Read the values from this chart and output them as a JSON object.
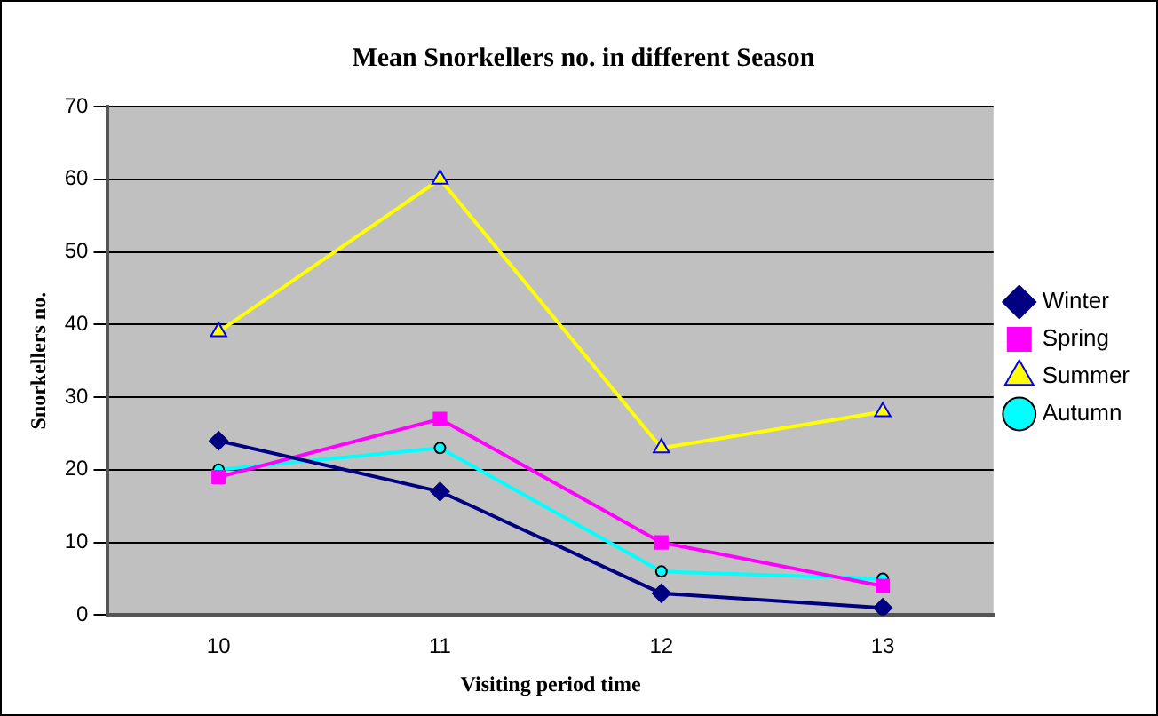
{
  "chart_data": {
    "type": "line",
    "title": "Mean Snorkellers no. in different Season",
    "xlabel": "Visiting period time",
    "ylabel": "Snorkellers no.",
    "categories": [
      "10",
      "11",
      "12",
      "13"
    ],
    "series": [
      {
        "name": "Winter",
        "color": "#000080",
        "marker": "diamond",
        "values": [
          24,
          17,
          3,
          1
        ]
      },
      {
        "name": "Spring",
        "color": "#ff00ff",
        "marker": "square",
        "values": [
          19,
          27,
          10,
          4
        ]
      },
      {
        "name": "Summer",
        "color": "#ffff00",
        "marker": "triangle",
        "values": [
          39,
          60,
          23,
          28
        ]
      },
      {
        "name": "Autumn",
        "color": "#00ffff",
        "marker": "circle",
        "values": [
          20,
          23,
          6,
          5
        ]
      }
    ],
    "ylim": [
      0,
      70
    ],
    "yticks": [
      0,
      10,
      20,
      30,
      40,
      50,
      60,
      70
    ],
    "grid": "y",
    "legend": "right",
    "line_style": "solid"
  }
}
